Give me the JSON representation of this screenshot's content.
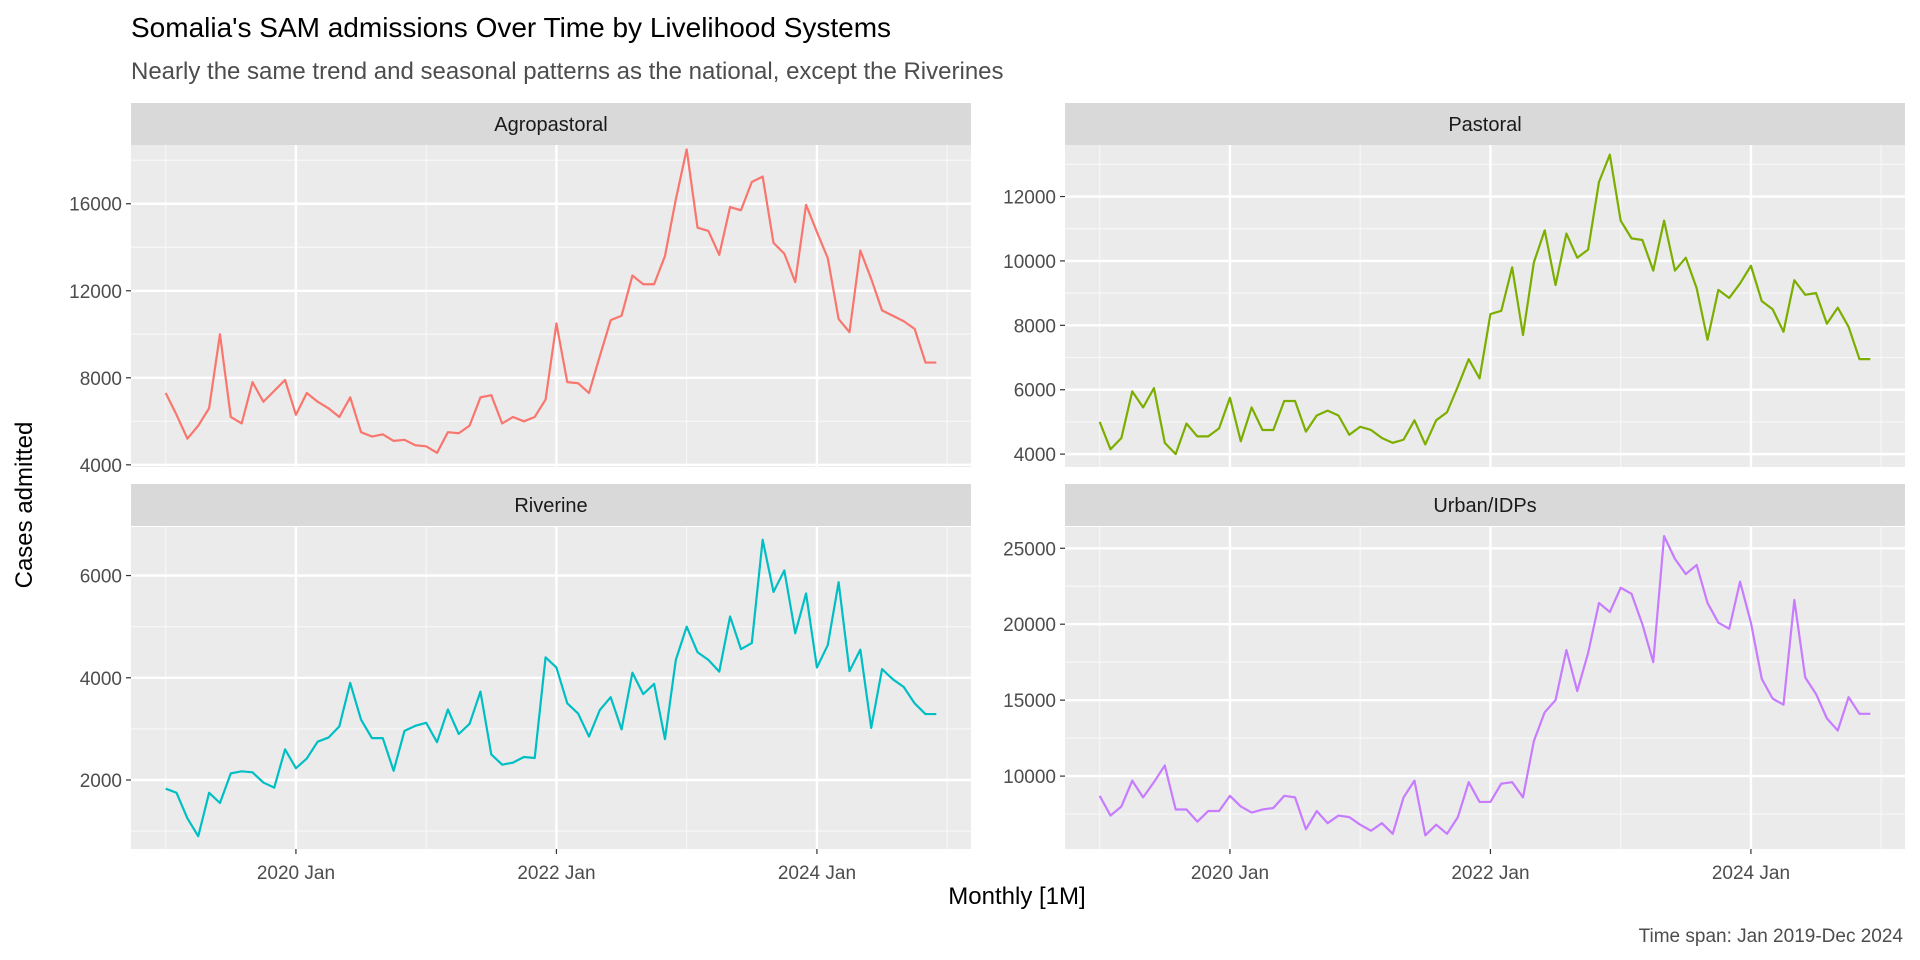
{
  "chart_data": {
    "type": "line",
    "title": "Somalia's SAM admissions Over Time by Livelihood Systems",
    "subtitle": "Nearly the same trend and seasonal patterns as the national, except the Riverines",
    "xlabel": "Monthly [1M]",
    "ylabel": "Cases admitted",
    "caption": "Time span: Jan 2019-Dec 2024",
    "x_start": "2019-01",
    "x_end": "2024-12",
    "x_ticks": [
      "2020 Jan",
      "2022 Jan",
      "2024 Jan"
    ],
    "grid": true,
    "legend": "none",
    "facets": [
      {
        "name": "Agropastoral",
        "color": "#F8766D",
        "ylim": [
          3900,
          18700
        ],
        "y_ticks": [
          4000,
          8000,
          12000,
          16000
        ],
        "values": [
          7300,
          6300,
          5200,
          5800,
          6600,
          10000,
          6200,
          5900,
          7800,
          6900,
          7400,
          7900,
          6300,
          7300,
          6900,
          6600,
          6200,
          7100,
          5500,
          5300,
          5400,
          5100,
          5150,
          4900,
          4850,
          4550,
          5500,
          5450,
          5800,
          7100,
          7200,
          5900,
          6200,
          6000,
          6200,
          7000,
          10500,
          7800,
          7750,
          7300,
          9000,
          10650,
          10850,
          12700,
          12300,
          12300,
          13600,
          16200,
          18500,
          14900,
          14750,
          13650,
          15850,
          15700,
          17000,
          17250,
          14200,
          13700,
          12400,
          15950,
          14700,
          13500,
          10700,
          10100,
          13850,
          12550,
          11100,
          10850,
          10600,
          10250,
          8700,
          8700
        ]
      },
      {
        "name": "Pastoral",
        "color": "#7CAE00",
        "ylim": [
          3600,
          13600
        ],
        "y_ticks": [
          4000,
          6000,
          8000,
          10000,
          12000
        ],
        "values": [
          5000,
          4150,
          4500,
          5950,
          5450,
          6050,
          4350,
          4000,
          4950,
          4550,
          4550,
          4800,
          5750,
          4400,
          5450,
          4750,
          4750,
          5650,
          5650,
          4700,
          5200,
          5350,
          5200,
          4600,
          4850,
          4750,
          4500,
          4350,
          4450,
          5050,
          4300,
          5050,
          5300,
          6100,
          6950,
          6350,
          8350,
          8450,
          9800,
          7700,
          9950,
          10950,
          9250,
          10850,
          10100,
          10350,
          12450,
          13300,
          11250,
          10700,
          10650,
          9700,
          11250,
          9700,
          10100,
          9150,
          7550,
          9100,
          8850,
          9300,
          9850,
          8750,
          8500,
          7800,
          9400,
          8950,
          9000,
          8050,
          8550,
          7950,
          6950,
          6950
        ]
      },
      {
        "name": "Riverine",
        "color": "#00BFC4",
        "ylim": [
          650,
          6950
        ],
        "y_ticks": [
          2000,
          4000,
          6000
        ],
        "values": [
          1830,
          1750,
          1250,
          900,
          1750,
          1550,
          2130,
          2170,
          2150,
          1950,
          1850,
          2600,
          2230,
          2420,
          2750,
          2830,
          3050,
          3900,
          3180,
          2820,
          2820,
          2180,
          2960,
          3060,
          3120,
          2740,
          3380,
          2900,
          3100,
          3730,
          2500,
          2300,
          2340,
          2450,
          2430,
          4400,
          4200,
          3500,
          3300,
          2850,
          3370,
          3620,
          2990,
          4100,
          3680,
          3880,
          2800,
          4350,
          5000,
          4500,
          4350,
          4120,
          5200,
          4560,
          4680,
          6700,
          5680,
          6100,
          4870,
          5650,
          4200,
          4640,
          5870,
          4130,
          4550,
          3020,
          4170,
          3970,
          3820,
          3500,
          3290,
          3290
        ]
      },
      {
        "name": "Urban/IDPs",
        "color": "#C77CFF",
        "ylim": [
          5200,
          26400
        ],
        "y_ticks": [
          10000,
          15000,
          20000,
          25000
        ],
        "values": [
          8700,
          7400,
          8000,
          9700,
          8600,
          9600,
          10700,
          7800,
          7800,
          7000,
          7700,
          7700,
          8700,
          8000,
          7600,
          7800,
          7900,
          8700,
          8600,
          6500,
          7700,
          6900,
          7400,
          7300,
          6800,
          6400,
          6900,
          6200,
          8600,
          9700,
          6100,
          6800,
          6200,
          7300,
          9600,
          8300,
          8300,
          9500,
          9600,
          8600,
          12300,
          14200,
          15000,
          18300,
          15600,
          18100,
          21400,
          20800,
          22400,
          22000,
          20000,
          17500,
          25800,
          24300,
          23300,
          23900,
          21400,
          20100,
          19700,
          22800,
          20100,
          16400,
          15100,
          14700,
          21600,
          16500,
          15400,
          13800,
          13000,
          15200,
          14100,
          14100
        ]
      }
    ]
  }
}
